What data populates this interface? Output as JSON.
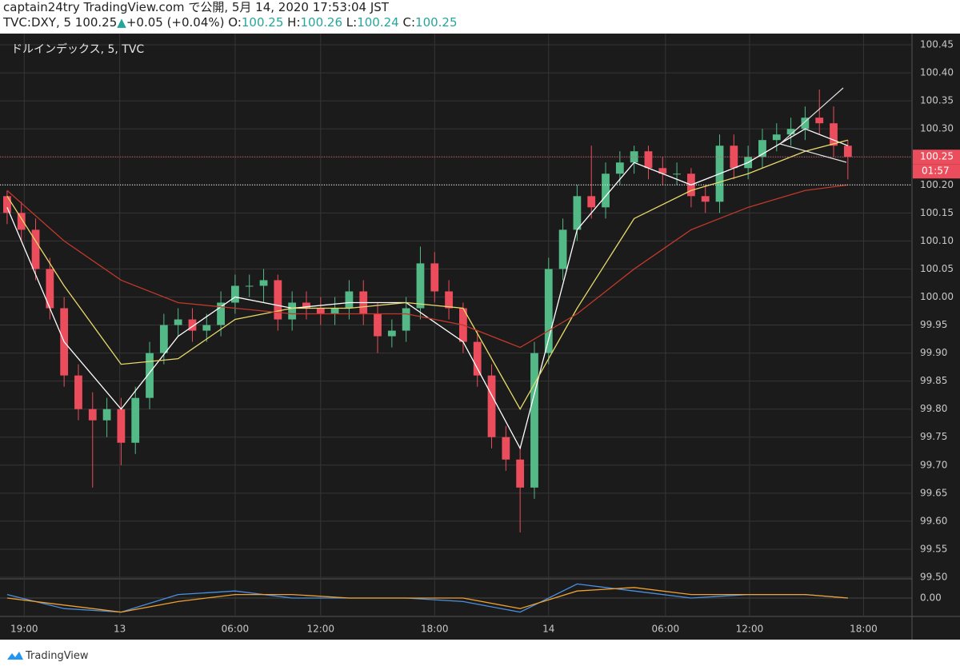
{
  "header": {
    "title": "captain24try TradingView.com で公開, 5月 14, 2020 17:53:04 JST",
    "symbol": "TVC:DXY, 5 100.25",
    "arrow": "▲",
    "change": "+0.05 (+0.04%)",
    "o_label": "O:",
    "o": 100.25,
    "h_label": "H:",
    "h": 100.26,
    "l_label": "L:",
    "l": 100.24,
    "c_label": "C:",
    "c": 100.25
  },
  "footer": {
    "brand": "TradingView"
  },
  "chart_data": {
    "type": "candlestick",
    "legend": "ドルインデックス, 5, TVC",
    "countdown": "01:57",
    "up_color": "#53b987",
    "down_color": "#eb4d5c",
    "grid": true,
    "open": [
      100.18,
      100.15,
      100.12,
      100.05,
      99.98,
      99.86,
      99.8,
      99.78,
      99.8,
      99.74,
      99.82,
      99.9,
      99.95,
      99.96,
      99.94,
      99.95,
      99.99,
      100.02,
      100.02,
      100.03,
      99.96,
      99.99,
      99.98,
      99.97,
      99.98,
      100.01,
      99.97,
      99.93,
      99.94,
      99.98,
      100.06,
      100.01,
      99.98,
      99.92,
      99.86,
      99.75,
      99.71,
      99.66,
      99.9,
      100.05,
      100.12,
      100.18,
      100.16,
      100.22,
      100.24,
      100.26,
      100.23,
      100.22,
      100.22,
      100.18,
      100.17,
      100.27,
      100.23,
      100.25,
      100.28,
      100.29,
      100.3,
      100.32,
      100.31,
      100.27
    ],
    "high": [
      100.19,
      100.17,
      100.14,
      100.07,
      100.0,
      99.88,
      99.83,
      99.82,
      99.82,
      99.84,
      99.92,
      99.97,
      99.98,
      99.98,
      99.97,
      100.01,
      100.04,
      100.04,
      100.05,
      100.04,
      100.01,
      100.01,
      100.0,
      100.0,
      100.03,
      100.03,
      99.99,
      99.96,
      100.0,
      100.09,
      100.08,
      100.03,
      99.99,
      99.94,
      99.88,
      99.77,
      99.73,
      99.92,
      100.07,
      100.14,
      100.2,
      100.27,
      100.24,
      100.26,
      100.27,
      100.27,
      100.25,
      100.24,
      100.23,
      100.2,
      100.29,
      100.29,
      100.27,
      100.3,
      100.31,
      100.32,
      100.34,
      100.37,
      100.34,
      100.28
    ],
    "low": [
      100.13,
      100.1,
      100.03,
      99.96,
      99.84,
      99.78,
      99.66,
      99.75,
      99.7,
      99.72,
      99.8,
      99.88,
      99.93,
      99.92,
      99.92,
      99.93,
      99.97,
      100.0,
      99.99,
      99.94,
      99.94,
      99.96,
      99.95,
      99.95,
      99.96,
      99.95,
      99.9,
      99.91,
      99.92,
      99.96,
      99.99,
      99.96,
      99.9,
      99.84,
      99.73,
      99.69,
      99.58,
      99.64,
      99.88,
      100.03,
      100.1,
      100.14,
      100.14,
      100.2,
      100.22,
      100.21,
      100.2,
      100.2,
      100.16,
      100.15,
      100.15,
      100.21,
      100.21,
      100.23,
      100.26,
      100.27,
      100.28,
      100.29,
      100.25,
      100.21
    ],
    "close": [
      100.15,
      100.12,
      100.05,
      99.98,
      99.86,
      99.8,
      99.78,
      99.8,
      99.74,
      99.82,
      99.9,
      99.95,
      99.96,
      99.94,
      99.95,
      99.99,
      100.02,
      100.02,
      100.03,
      99.96,
      99.99,
      99.98,
      99.97,
      99.98,
      100.01,
      99.97,
      99.93,
      99.94,
      99.98,
      100.06,
      100.01,
      99.98,
      99.92,
      99.86,
      99.75,
      99.71,
      99.66,
      99.9,
      100.05,
      100.12,
      100.18,
      100.16,
      100.22,
      100.24,
      100.26,
      100.23,
      100.22,
      100.22,
      100.18,
      100.17,
      100.27,
      100.23,
      100.25,
      100.28,
      100.29,
      100.3,
      100.32,
      100.31,
      100.27,
      100.25
    ],
    "overlay_x": [
      0,
      4,
      8,
      12,
      16,
      20,
      24,
      28,
      32,
      36,
      40,
      44,
      48,
      52,
      56,
      59
    ],
    "overlays": [
      {
        "color": "#ffffff",
        "values": [
          100.16,
          99.92,
          99.8,
          99.93,
          100.0,
          99.98,
          99.99,
          99.99,
          99.92,
          99.73,
          100.12,
          100.24,
          100.2,
          100.24,
          100.3,
          100.27
        ]
      },
      {
        "color": "#e8d96a",
        "values": [
          100.18,
          100.02,
          99.88,
          99.89,
          99.96,
          99.98,
          99.98,
          99.99,
          99.98,
          99.8,
          99.98,
          100.14,
          100.19,
          100.22,
          100.26,
          100.28
        ]
      },
      {
        "color": "#c0392b",
        "values": [
          100.19,
          100.1,
          100.03,
          99.99,
          99.98,
          99.97,
          99.97,
          99.97,
          99.95,
          99.91,
          99.97,
          100.05,
          100.12,
          100.16,
          100.19,
          100.2
        ]
      }
    ],
    "xlim": [
      -0.5,
      63.5
    ],
    "xticks": [
      {
        "value": 1.2,
        "label": "19:00"
      },
      {
        "value": 7.9,
        "label": "13"
      },
      {
        "value": 16.0,
        "label": "06:00"
      },
      {
        "value": 22.0,
        "label": "12:00"
      },
      {
        "value": 30.0,
        "label": "18:00"
      },
      {
        "value": 38.0,
        "label": "14"
      },
      {
        "value": 46.2,
        "label": "06:00"
      },
      {
        "value": 52.1,
        "label": "12:00"
      },
      {
        "value": 60.1,
        "label": "18:00"
      }
    ],
    "ylim": [
      99.5,
      100.47
    ],
    "yticks": [
      {
        "value": 99.5,
        "label": "99.50"
      },
      99.55,
      {
        "value": 99.6,
        "label": "99.60"
      },
      99.65,
      {
        "value": 99.7,
        "label": "99.70"
      },
      99.75,
      {
        "value": 99.8,
        "label": "99.80"
      },
      99.85,
      {
        "value": 99.9,
        "label": "99.90"
      },
      99.95,
      {
        "value": 100,
        "label": "100.00"
      },
      100.05,
      {
        "value": 100.1,
        "label": "100.10"
      },
      100.15,
      {
        "value": 100.2,
        "label": "100.20"
      },
      100.25,
      {
        "value": 100.3,
        "label": "100.30"
      },
      100.35,
      {
        "value": 100.4,
        "label": "100.40"
      },
      100.45
    ],
    "indicator": {
      "ylim": [
        -0.05,
        0.05
      ],
      "yticks": [
        {
          "value": 0,
          "label": "0.00"
        }
      ],
      "lines": [
        {
          "color": "#4a90e2",
          "values": [
            0.01,
            -0.03,
            -0.04,
            0.01,
            0.02,
            0.0,
            0.0,
            0.0,
            -0.01,
            -0.04,
            0.04,
            0.02,
            0.0,
            0.01,
            0.01,
            0.0
          ]
        },
        {
          "color": "#f0a030",
          "values": [
            0.0,
            -0.02,
            -0.04,
            -0.01,
            0.01,
            0.01,
            0.0,
            0.0,
            0.0,
            -0.03,
            0.02,
            0.03,
            0.01,
            0.01,
            0.01,
            0.0
          ]
        }
      ]
    }
  }
}
